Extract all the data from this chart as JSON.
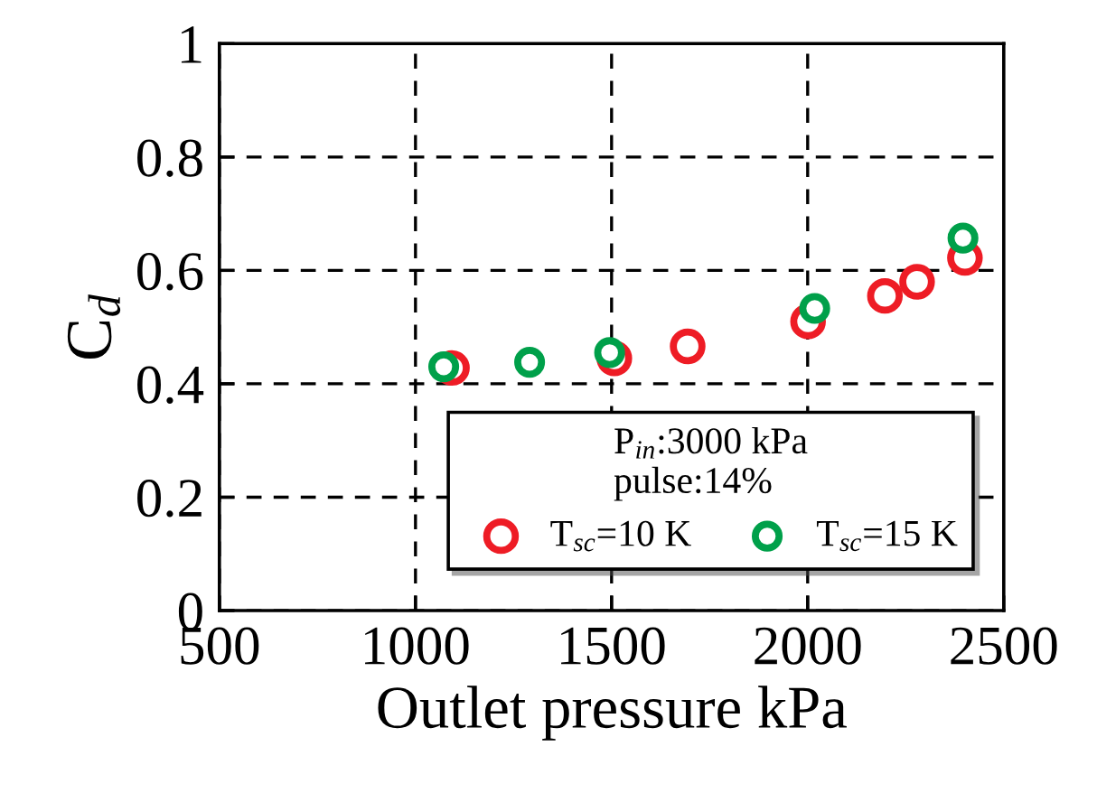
{
  "chart_data": {
    "type": "scatter",
    "xlabel": "Outlet pressure kPa",
    "ylabel": "C$_{d}$",
    "legend_title": "P$_{in}$:3000 kPa\npulse:14%",
    "series": [
      {
        "name": "T$_{sc}$=10 K",
        "color": "#ee1c25",
        "x": [
          1093,
          1507,
          1694,
          2001,
          2197,
          2279,
          2401
        ],
        "values": [
          0.428,
          0.445,
          0.466,
          0.51,
          0.555,
          0.58,
          0.622
        ]
      },
      {
        "name": "T$_{sc}$=15 K",
        "color": "#00a04a",
        "x": [
          1072,
          1291,
          1495,
          2018,
          2396
        ],
        "values": [
          0.43,
          0.438,
          0.455,
          0.533,
          0.657
        ]
      }
    ],
    "xlim": [
      500,
      2500
    ],
    "ylim": [
      0,
      1
    ],
    "xticks": [
      500,
      1000,
      1500,
      2000,
      2500
    ],
    "yticks": [
      0,
      0.2,
      0.4,
      0.6,
      0.8,
      1
    ],
    "grid": true,
    "legend": "bottom right",
    "marker": "circle"
  }
}
